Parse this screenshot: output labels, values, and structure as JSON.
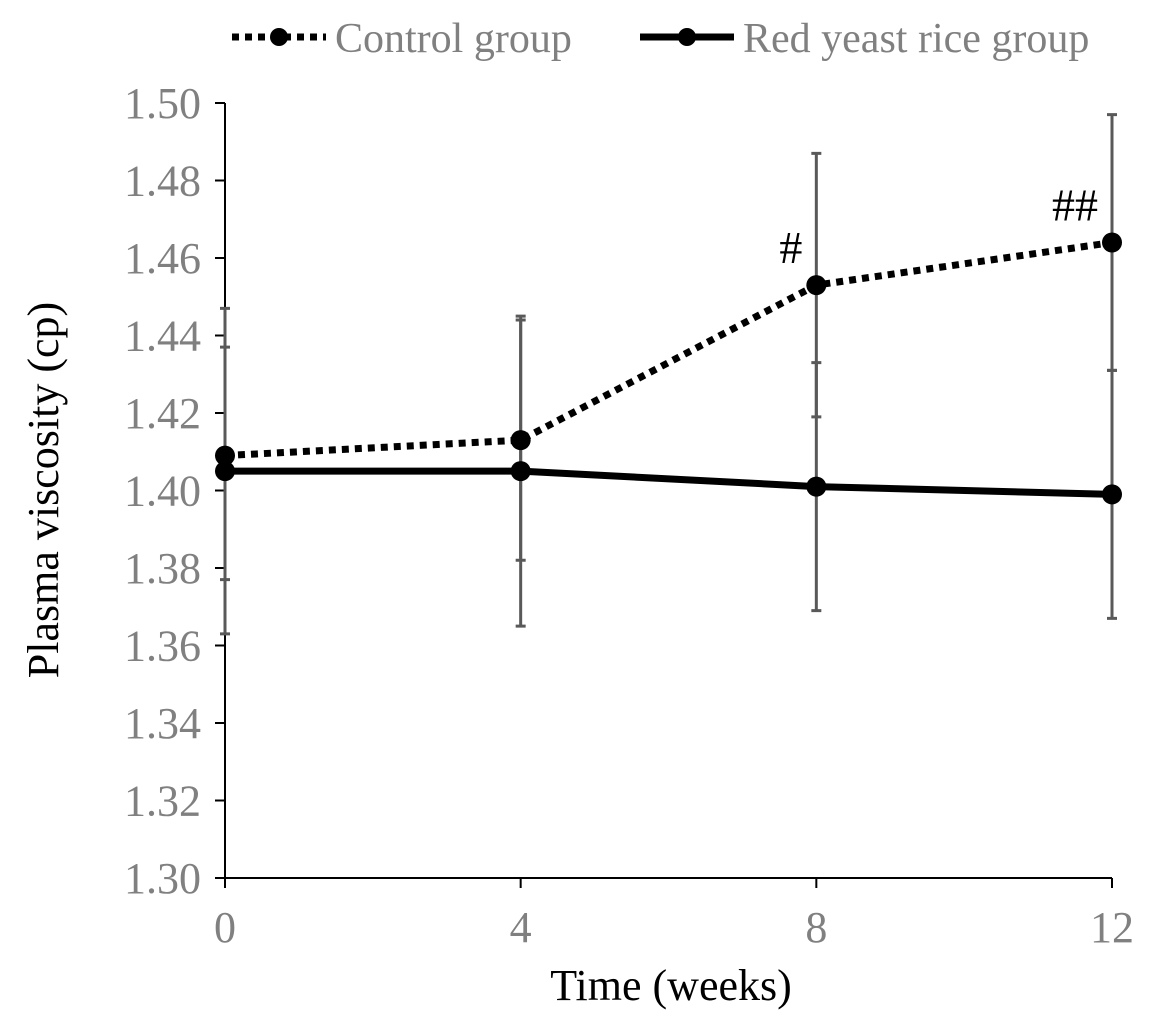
{
  "chart_data": {
    "type": "line",
    "title": "",
    "xlabel": "Time (weeks)",
    "ylabel": "Plasma viscosity (cp)",
    "x": [
      0,
      4,
      8,
      12
    ],
    "xlim": [
      0,
      12
    ],
    "ylim": [
      1.3,
      1.5
    ],
    "x_tick_labels": [
      "0",
      "4",
      "8",
      "12"
    ],
    "y_tick_labels": [
      "1.30",
      "1.32",
      "1.34",
      "1.36",
      "1.38",
      "1.40",
      "1.42",
      "1.44",
      "1.46",
      "1.48",
      "1.50"
    ],
    "grid": false,
    "legend_position": "top",
    "series": [
      {
        "name": "Control group",
        "style": "dotted",
        "color": "#000000",
        "values": [
          1.409,
          1.413,
          1.453,
          1.464
        ],
        "error_high": [
          1.447,
          1.445,
          1.487,
          1.497
        ],
        "error_low": [
          1.363,
          1.382,
          1.419,
          1.431
        ],
        "annotations": [
          "",
          "",
          "#",
          "##"
        ]
      },
      {
        "name": "Red yeast rice group",
        "style": "solid",
        "color": "#000000",
        "values": [
          1.405,
          1.405,
          1.401,
          1.399
        ],
        "error_high": [
          1.437,
          1.444,
          1.433,
          1.431
        ],
        "error_low": [
          1.377,
          1.365,
          1.369,
          1.367
        ]
      }
    ],
    "errorbar_color": "#595959",
    "axis_color": "#000000",
    "tick_label_color": "#808080"
  }
}
